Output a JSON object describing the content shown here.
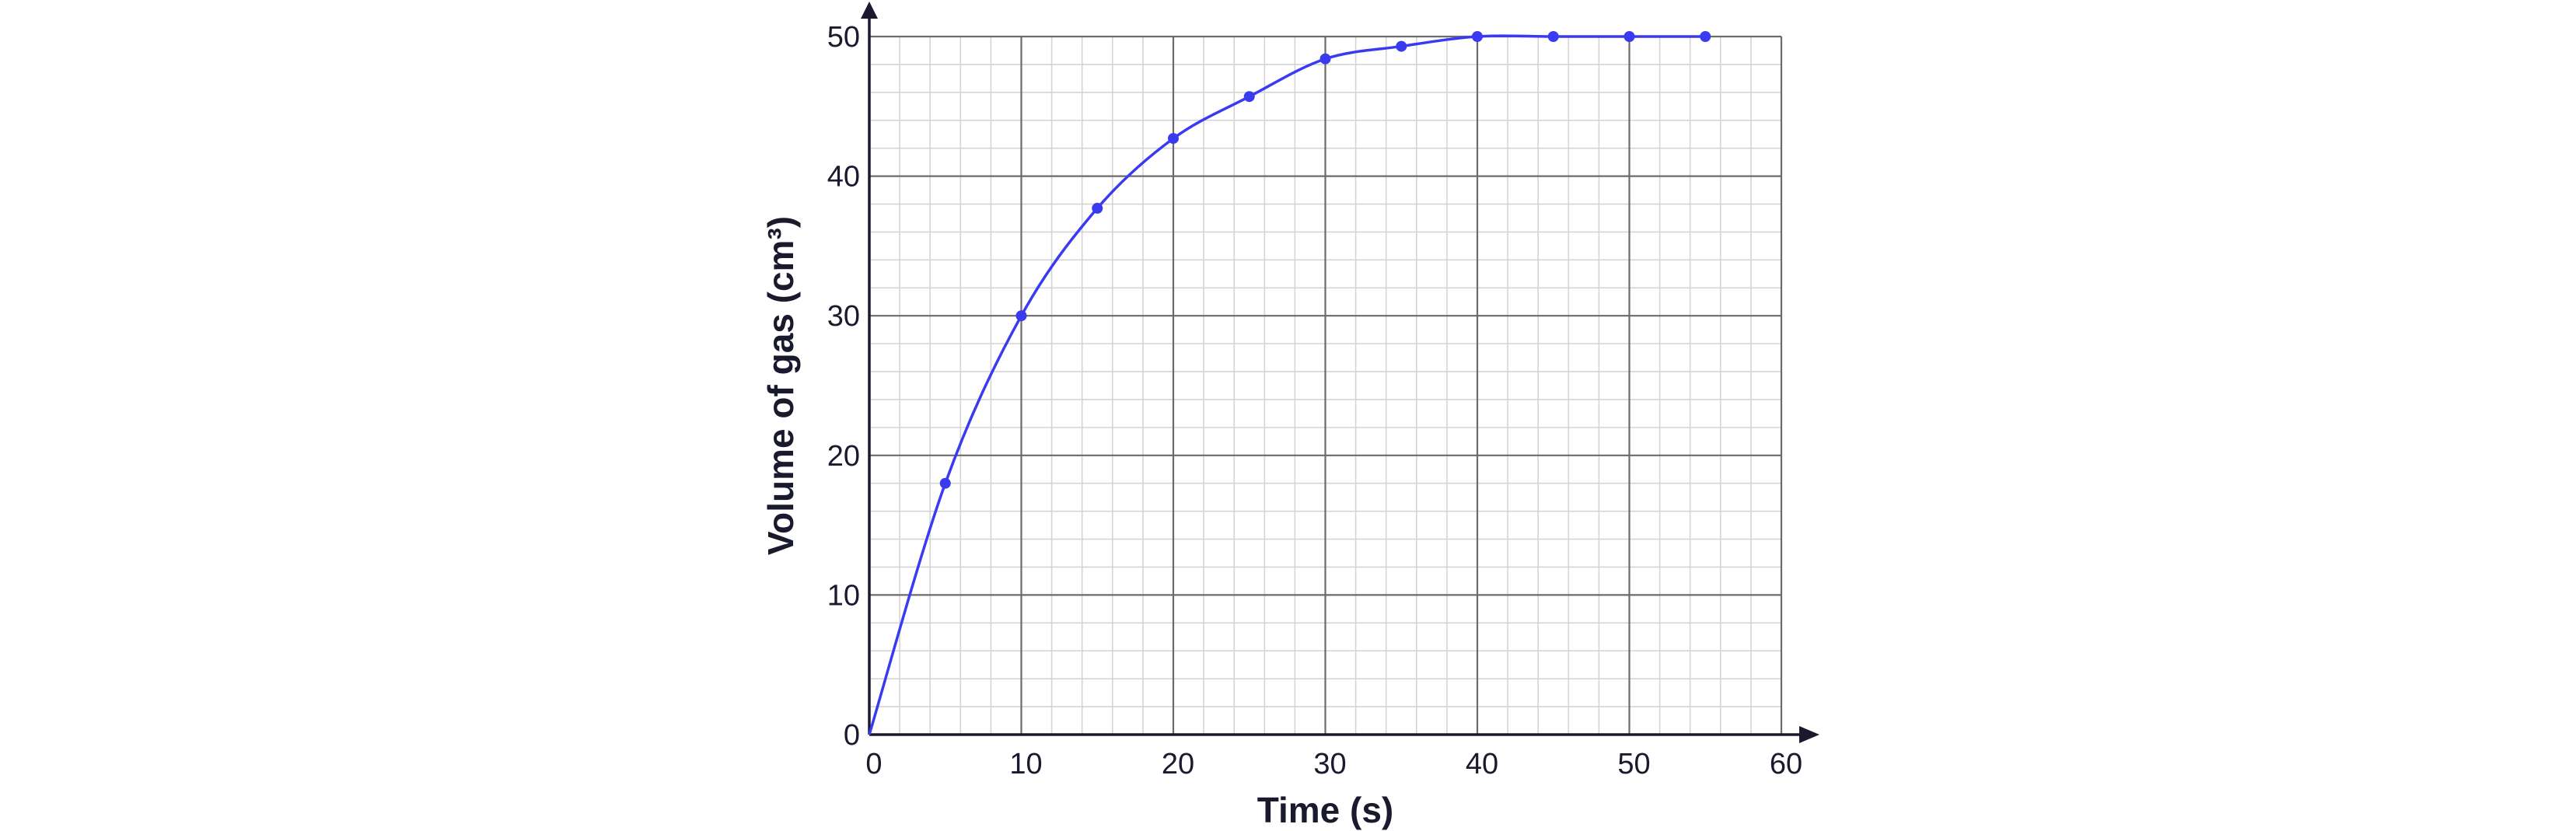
{
  "chart_data": {
    "type": "line",
    "xlabel": "Time (s)",
    "ylabel": "Volume of gas (cm³)",
    "xlim": [
      0,
      60
    ],
    "ylim": [
      0,
      50
    ],
    "x_ticks": [
      "0",
      "10",
      "20",
      "30",
      "40",
      "50",
      "60"
    ],
    "y_ticks": [
      "0",
      "10",
      "20",
      "30",
      "40",
      "50"
    ],
    "x_major_step": 10,
    "y_major_step": 10,
    "minor_divisions": 5,
    "grid": true,
    "series": [
      {
        "x": [
          0,
          5,
          10,
          15,
          20,
          25,
          30,
          35,
          40,
          45,
          50,
          55
        ],
        "values": [
          0,
          18,
          30,
          37.7,
          42.7,
          45.7,
          48.4,
          49.3,
          50,
          50,
          50,
          50
        ]
      }
    ],
    "colors": {
      "line": "#3a3af0",
      "major_grid": "#6b6b6b",
      "minor_grid": "#d4d4d4",
      "axis": "#1a1a2e"
    }
  }
}
